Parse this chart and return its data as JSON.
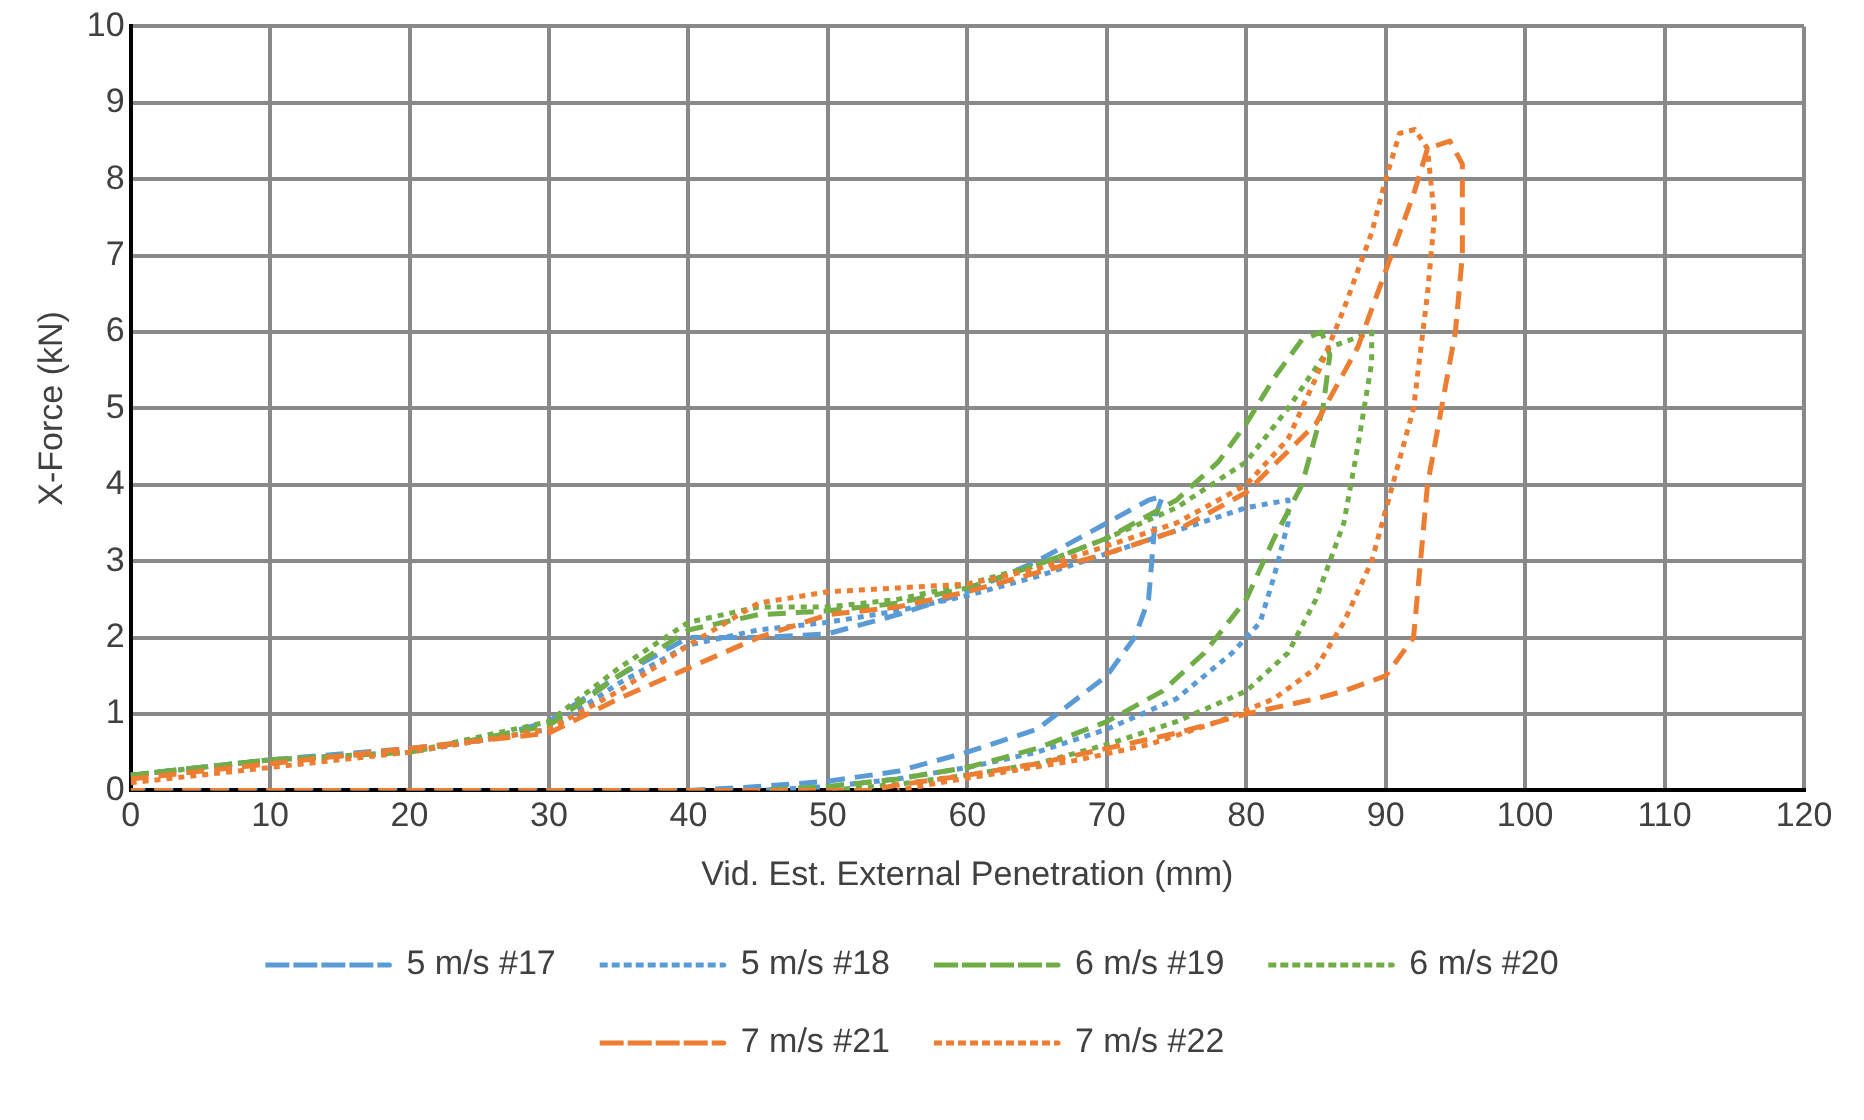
{
  "chart_data": {
    "type": "line",
    "xlabel": "Vid. Est. External Penetration (mm)",
    "ylabel": "X-Force (kN)",
    "xlim": [
      0,
      120
    ],
    "xticks": [
      0,
      10,
      20,
      30,
      40,
      50,
      60,
      70,
      80,
      90,
      100,
      110,
      120
    ],
    "ylim": [
      0,
      10
    ],
    "yticks": [
      0,
      1,
      2,
      3,
      4,
      5,
      6,
      7,
      8,
      9,
      10
    ],
    "grid": true,
    "legend": "bottom",
    "marker": "none",
    "series": [
      {
        "name": "5 m/s #17",
        "color": "#5b9bd5",
        "line_style": "dashed",
        "x": [
          0,
          10,
          20,
          25,
          30,
          35,
          40,
          45,
          50,
          55,
          60,
          65,
          70,
          73,
          74,
          73.5,
          73,
          72,
          70,
          65,
          60,
          55,
          50,
          45,
          40,
          0
        ],
        "values": [
          0.2,
          0.4,
          0.55,
          0.65,
          0.9,
          1.5,
          2.0,
          2.0,
          2.05,
          2.3,
          2.6,
          3.0,
          3.5,
          3.8,
          3.85,
          3.6,
          2.5,
          2.0,
          1.5,
          0.8,
          0.5,
          0.25,
          0.12,
          0.05,
          0,
          0
        ]
      },
      {
        "name": "5 m/s #18",
        "color": "#5b9bd5",
        "line_style": "dotted",
        "x": [
          0,
          10,
          20,
          30,
          35,
          40,
          45,
          50,
          55,
          60,
          65,
          70,
          75,
          80,
          83,
          83,
          82,
          81,
          79,
          75,
          70,
          65,
          60,
          55,
          50,
          45
        ],
        "values": [
          0.2,
          0.4,
          0.5,
          0.8,
          1.4,
          1.9,
          2.1,
          2.2,
          2.35,
          2.55,
          2.8,
          3.1,
          3.4,
          3.7,
          3.8,
          3.5,
          2.8,
          2.2,
          1.8,
          1.2,
          0.8,
          0.5,
          0.3,
          0.15,
          0.05,
          0
        ]
      },
      {
        "name": "6 m/s #19",
        "color": "#70ad47",
        "line_style": "dashed",
        "x": [
          0,
          10,
          20,
          30,
          35,
          40,
          45,
          50,
          55,
          60,
          65,
          70,
          75,
          78,
          80,
          82,
          84,
          85.4,
          86,
          85.5,
          84,
          82,
          80,
          77,
          74,
          70,
          65,
          60,
          55,
          50,
          45
        ],
        "values": [
          0.2,
          0.4,
          0.5,
          0.85,
          1.5,
          2.1,
          2.3,
          2.35,
          2.45,
          2.65,
          2.95,
          3.3,
          3.8,
          4.3,
          4.8,
          5.4,
          5.9,
          6.0,
          5.7,
          5.0,
          4.0,
          3.3,
          2.5,
          1.8,
          1.3,
          0.9,
          0.55,
          0.3,
          0.15,
          0.05,
          0
        ]
      },
      {
        "name": "6 m/s #20",
        "color": "#70ad47",
        "line_style": "dotted",
        "x": [
          0,
          10,
          20,
          30,
          35,
          40,
          45,
          50,
          55,
          60,
          65,
          70,
          75,
          80,
          83,
          86,
          89,
          89,
          88,
          87,
          85,
          83,
          80,
          75,
          70,
          65,
          60,
          55,
          50
        ],
        "values": [
          0.2,
          0.4,
          0.5,
          0.9,
          1.6,
          2.2,
          2.4,
          2.4,
          2.5,
          2.7,
          2.95,
          3.3,
          3.7,
          4.3,
          5.0,
          5.8,
          6.0,
          5.6,
          4.5,
          3.5,
          2.5,
          1.8,
          1.3,
          0.9,
          0.6,
          0.35,
          0.2,
          0.08,
          0
        ]
      },
      {
        "name": "7 m/s #21",
        "color": "#ed7d31",
        "line_style": "dashed",
        "x": [
          0,
          10,
          20,
          30,
          35,
          40,
          45,
          50,
          55,
          60,
          65,
          70,
          75,
          80,
          85,
          88,
          90,
          92,
          93,
          94.6,
          95.5,
          95.5,
          95,
          94,
          93,
          92.5,
          92,
          90,
          87,
          85,
          80,
          75,
          70,
          65,
          60,
          55,
          53,
          0
        ],
        "values": [
          0.15,
          0.35,
          0.55,
          0.75,
          1.2,
          1.6,
          2.0,
          2.3,
          2.4,
          2.6,
          2.85,
          3.1,
          3.4,
          3.9,
          4.8,
          5.8,
          6.8,
          7.8,
          8.4,
          8.5,
          8.2,
          7.0,
          6.0,
          5.0,
          4.0,
          3.0,
          2.0,
          1.5,
          1.3,
          1.2,
          1.0,
          0.75,
          0.55,
          0.35,
          0.2,
          0.07,
          0,
          0
        ]
      },
      {
        "name": "7 m/s #22",
        "color": "#ed7d31",
        "line_style": "dotted",
        "x": [
          0,
          10,
          20,
          30,
          35,
          40,
          45,
          50,
          55,
          60,
          65,
          70,
          75,
          80,
          83,
          85,
          87,
          89,
          90,
          91,
          92.1,
          93,
          93.5,
          93,
          92,
          90.5,
          89,
          87,
          85,
          82,
          78,
          73,
          68,
          63,
          58,
          55
        ],
        "values": [
          0.1,
          0.3,
          0.5,
          0.8,
          1.3,
          1.9,
          2.45,
          2.6,
          2.65,
          2.7,
          2.9,
          3.2,
          3.5,
          4.0,
          4.6,
          5.4,
          6.3,
          7.3,
          8.0,
          8.6,
          8.65,
          8.4,
          7.5,
          6.5,
          5.0,
          4.0,
          3.0,
          2.2,
          1.6,
          1.2,
          0.9,
          0.6,
          0.4,
          0.25,
          0.1,
          0
        ]
      }
    ]
  }
}
